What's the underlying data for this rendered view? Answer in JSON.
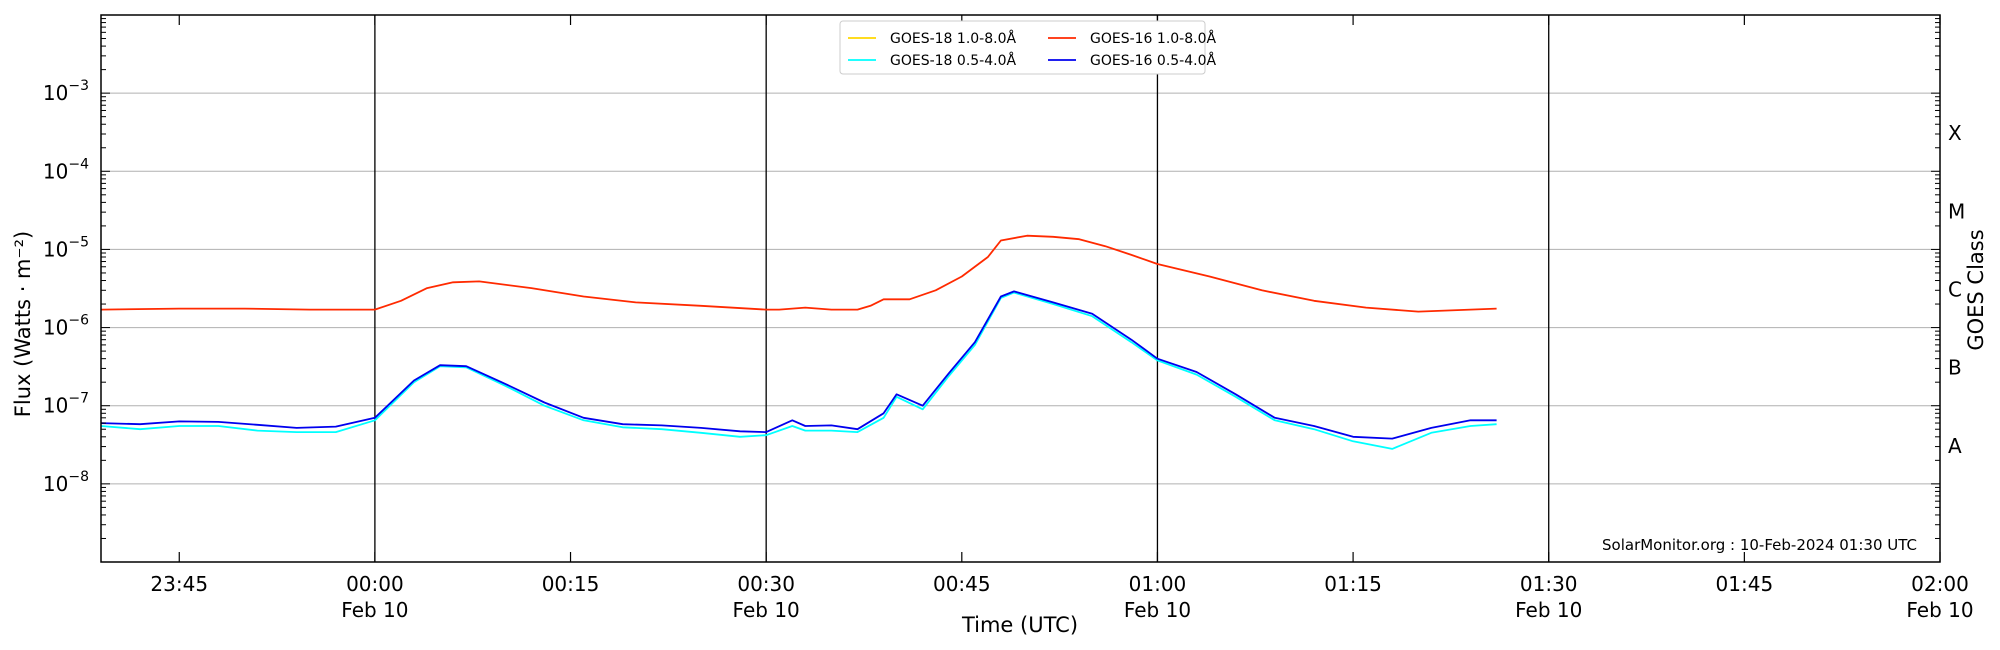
{
  "chart_data": {
    "type": "line",
    "xlabel": "Time (UTC)",
    "ylabel": "Flux (Watts · m⁻²)",
    "ylabel_right": "GOES Class",
    "credit": "SolarMonitor.org : 10-Feb-2024 01:30 UTC",
    "y_scale": "log",
    "ylim": [
      1e-09,
      0.01
    ],
    "xlim": [
      "2024-02-09 23:39",
      "2024-02-10 02:00"
    ],
    "x_ticks": [
      {
        "t": "2024-02-09 23:45",
        "label": "23:45",
        "sub": ""
      },
      {
        "t": "2024-02-10 00:00",
        "label": "00:00",
        "sub": "Feb 10"
      },
      {
        "t": "2024-02-10 00:15",
        "label": "00:15",
        "sub": ""
      },
      {
        "t": "2024-02-10 00:30",
        "label": "00:30",
        "sub": "Feb 10"
      },
      {
        "t": "2024-02-10 00:45",
        "label": "00:45",
        "sub": ""
      },
      {
        "t": "2024-02-10 01:00",
        "label": "01:00",
        "sub": "Feb 10"
      },
      {
        "t": "2024-02-10 01:15",
        "label": "01:15",
        "sub": ""
      },
      {
        "t": "2024-02-10 01:30",
        "label": "01:30",
        "sub": "Feb 10"
      },
      {
        "t": "2024-02-10 01:45",
        "label": "01:45",
        "sub": ""
      },
      {
        "t": "2024-02-10 02:00",
        "label": "02:00",
        "sub": "Feb 10"
      }
    ],
    "y_ticks": [
      {
        "v": 1e-08,
        "base": "10",
        "exp": "−8"
      },
      {
        "v": 1e-07,
        "base": "10",
        "exp": "−7"
      },
      {
        "v": 1e-06,
        "base": "10",
        "exp": "−6"
      },
      {
        "v": 1e-05,
        "base": "10",
        "exp": "−5"
      },
      {
        "v": 0.0001,
        "base": "10",
        "exp": "−4"
      },
      {
        "v": 0.001,
        "base": "10",
        "exp": "−3"
      }
    ],
    "goes_classes": [
      {
        "label": "A",
        "v": 3.16e-08
      },
      {
        "label": "B",
        "v": 3.16e-07
      },
      {
        "label": "C",
        "v": 3.16e-06
      },
      {
        "label": "M",
        "v": 3.16e-05
      },
      {
        "label": "X",
        "v": 0.000316
      }
    ],
    "vlines": [
      "2024-02-10 00:00",
      "2024-02-10 00:30",
      "2024-02-10 01:00",
      "2024-02-10 01:30"
    ],
    "grid": "horizontal",
    "legend_position": "top-center",
    "series": [
      {
        "name": "GOES-18 1.0-8.0Å",
        "color": "#ffd700",
        "x": [
          "2024-02-09 23:39"
        ],
        "y": [
          null
        ]
      },
      {
        "name": "GOES-18 0.5-4.0Å",
        "color": "#00ffff",
        "x": [
          "2024-02-09 23:39",
          "2024-02-09 23:42",
          "2024-02-09 23:45",
          "2024-02-09 23:48",
          "2024-02-09 23:51",
          "2024-02-09 23:54",
          "2024-02-09 23:57",
          "2024-02-10 00:00",
          "2024-02-10 00:03",
          "2024-02-10 00:05",
          "2024-02-10 00:07",
          "2024-02-10 00:10",
          "2024-02-10 00:13",
          "2024-02-10 00:16",
          "2024-02-10 00:19",
          "2024-02-10 00:22",
          "2024-02-10 00:25",
          "2024-02-10 00:28",
          "2024-02-10 00:30",
          "2024-02-10 00:32",
          "2024-02-10 00:33",
          "2024-02-10 00:35",
          "2024-02-10 00:37",
          "2024-02-10 00:39",
          "2024-02-10 00:40",
          "2024-02-10 00:42",
          "2024-02-10 00:44",
          "2024-02-10 00:46",
          "2024-02-10 00:48",
          "2024-02-10 00:49",
          "2024-02-10 00:52",
          "2024-02-10 00:55",
          "2024-02-10 00:58",
          "2024-02-10 01:00",
          "2024-02-10 01:03",
          "2024-02-10 01:06",
          "2024-02-10 01:09",
          "2024-02-10 01:12",
          "2024-02-10 01:15",
          "2024-02-10 01:18",
          "2024-02-10 01:21",
          "2024-02-10 01:24",
          "2024-02-10 01:26"
        ],
        "y": [
          5.5e-08,
          5e-08,
          5.5e-08,
          5.5e-08,
          4.8e-08,
          4.6e-08,
          4.6e-08,
          6.5e-08,
          2e-07,
          3.2e-07,
          3.1e-07,
          1.8e-07,
          1e-07,
          6.5e-08,
          5.3e-08,
          5e-08,
          4.5e-08,
          4e-08,
          4.2e-08,
          5.5e-08,
          4.8e-08,
          4.8e-08,
          4.6e-08,
          7e-08,
          1.3e-07,
          9e-08,
          2.4e-07,
          6e-07,
          2.4e-06,
          2.8e-06,
          2e-06,
          1.4e-06,
          6.5e-07,
          3.8e-07,
          2.5e-07,
          1.3e-07,
          6.5e-08,
          5e-08,
          3.5e-08,
          2.8e-08,
          4.5e-08,
          5.5e-08,
          5.8e-08
        ]
      },
      {
        "name": "GOES-16 1.0-8.0Å",
        "color": "#ff2a00",
        "x": [
          "2024-02-09 23:39",
          "2024-02-09 23:45",
          "2024-02-09 23:50",
          "2024-02-09 23:55",
          "2024-02-10 00:00",
          "2024-02-10 00:02",
          "2024-02-10 00:04",
          "2024-02-10 00:06",
          "2024-02-10 00:08",
          "2024-02-10 00:12",
          "2024-02-10 00:16",
          "2024-02-10 00:20",
          "2024-02-10 00:25",
          "2024-02-10 00:30",
          "2024-02-10 00:31",
          "2024-02-10 00:33",
          "2024-02-10 00:35",
          "2024-02-10 00:37",
          "2024-02-10 00:38",
          "2024-02-10 00:39",
          "2024-02-10 00:41",
          "2024-02-10 00:43",
          "2024-02-10 00:45",
          "2024-02-10 00:47",
          "2024-02-10 00:48",
          "2024-02-10 00:50",
          "2024-02-10 00:52",
          "2024-02-10 00:54",
          "2024-02-10 00:56",
          "2024-02-10 00:58",
          "2024-02-10 01:00",
          "2024-02-10 01:04",
          "2024-02-10 01:08",
          "2024-02-10 01:12",
          "2024-02-10 01:16",
          "2024-02-10 01:20",
          "2024-02-10 01:24",
          "2024-02-10 01:26"
        ],
        "y": [
          1.7e-06,
          1.75e-06,
          1.75e-06,
          1.7e-06,
          1.7e-06,
          2.2e-06,
          3.2e-06,
          3.8e-06,
          3.9e-06,
          3.2e-06,
          2.5e-06,
          2.1e-06,
          1.9e-06,
          1.7e-06,
          1.7e-06,
          1.8e-06,
          1.7e-06,
          1.7e-06,
          1.9e-06,
          2.3e-06,
          2.3e-06,
          3e-06,
          4.5e-06,
          8e-06,
          1.3e-05,
          1.5e-05,
          1.45e-05,
          1.35e-05,
          1.1e-05,
          8.5e-06,
          6.5e-06,
          4.5e-06,
          3e-06,
          2.2e-06,
          1.8e-06,
          1.6e-06,
          1.7e-06,
          1.75e-06
        ]
      },
      {
        "name": "GOES-16 0.5-4.0Å",
        "color": "#0000ee",
        "x": [
          "2024-02-09 23:39",
          "2024-02-09 23:42",
          "2024-02-09 23:45",
          "2024-02-09 23:48",
          "2024-02-09 23:51",
          "2024-02-09 23:54",
          "2024-02-09 23:57",
          "2024-02-10 00:00",
          "2024-02-10 00:03",
          "2024-02-10 00:05",
          "2024-02-10 00:07",
          "2024-02-10 00:10",
          "2024-02-10 00:13",
          "2024-02-10 00:16",
          "2024-02-10 00:19",
          "2024-02-10 00:22",
          "2024-02-10 00:25",
          "2024-02-10 00:28",
          "2024-02-10 00:30",
          "2024-02-10 00:32",
          "2024-02-10 00:33",
          "2024-02-10 00:35",
          "2024-02-10 00:37",
          "2024-02-10 00:39",
          "2024-02-10 00:40",
          "2024-02-10 00:42",
          "2024-02-10 00:44",
          "2024-02-10 00:46",
          "2024-02-10 00:48",
          "2024-02-10 00:49",
          "2024-02-10 00:52",
          "2024-02-10 00:55",
          "2024-02-10 00:58",
          "2024-02-10 01:00",
          "2024-02-10 01:03",
          "2024-02-10 01:06",
          "2024-02-10 01:09",
          "2024-02-10 01:12",
          "2024-02-10 01:15",
          "2024-02-10 01:18",
          "2024-02-10 01:21",
          "2024-02-10 01:24",
          "2024-02-10 01:26"
        ],
        "y": [
          6e-08,
          5.8e-08,
          6.3e-08,
          6.2e-08,
          5.7e-08,
          5.2e-08,
          5.4e-08,
          7e-08,
          2.1e-07,
          3.3e-07,
          3.2e-07,
          1.9e-07,
          1.1e-07,
          7e-08,
          5.8e-08,
          5.6e-08,
          5.2e-08,
          4.7e-08,
          4.6e-08,
          6.5e-08,
          5.5e-08,
          5.6e-08,
          5e-08,
          8e-08,
          1.4e-07,
          1e-07,
          2.6e-07,
          6.5e-07,
          2.5e-06,
          2.9e-06,
          2.1e-06,
          1.5e-06,
          7e-07,
          4e-07,
          2.7e-07,
          1.4e-07,
          7e-08,
          5.5e-08,
          4e-08,
          3.8e-08,
          5.2e-08,
          6.5e-08,
          6.5e-08
        ]
      }
    ]
  }
}
